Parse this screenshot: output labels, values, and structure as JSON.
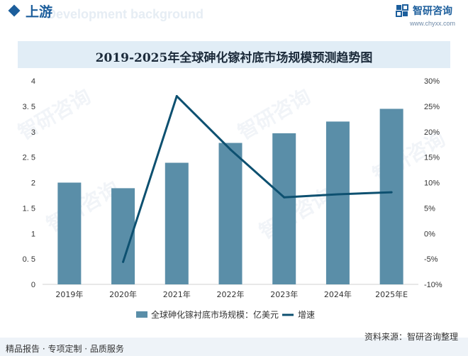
{
  "header": {
    "title": "上游",
    "subtitle": "Development background",
    "logo_text": "智研咨询",
    "logo_url": "www.chyxx.com"
  },
  "watermark_text": "智研咨询",
  "chart_data": {
    "type": "bar",
    "title": "2019-2025年全球砷化镓衬底市场规模预测趋势图",
    "categories": [
      "2019年",
      "2020年",
      "2021年",
      "2022年",
      "2023年",
      "2024年",
      "2025年E"
    ],
    "series": [
      {
        "name": "全球砷化镓衬底市场规模：亿美元",
        "type": "bar",
        "axis": "left",
        "values": [
          2.0,
          1.89,
          2.39,
          2.78,
          2.97,
          3.2,
          3.45
        ]
      },
      {
        "name": "增速",
        "type": "line",
        "axis": "right",
        "values": [
          null,
          -5.6,
          27.0,
          16.5,
          7.1,
          7.7,
          8.1
        ]
      }
    ],
    "left_axis": {
      "min": 0,
      "max": 4,
      "ticks": [
        "0",
        "0. 5",
        "1",
        "1. 5",
        "2",
        "2. 5",
        "3",
        "3. 5",
        "4"
      ]
    },
    "right_axis": {
      "min": -10,
      "max": 30,
      "ticks": [
        "-10%",
        "-5%",
        "0%",
        "5%",
        "10%",
        "15%",
        "20%",
        "25%",
        "30%"
      ]
    },
    "legend_position": "bottom",
    "grid": false,
    "colors": {
      "bar": "#5a8ea8",
      "line": "#0d5070"
    }
  },
  "footer": {
    "left": "精品报告 · 专项定制 · 品质服务",
    "source": "资料来源：智研咨询整理"
  }
}
